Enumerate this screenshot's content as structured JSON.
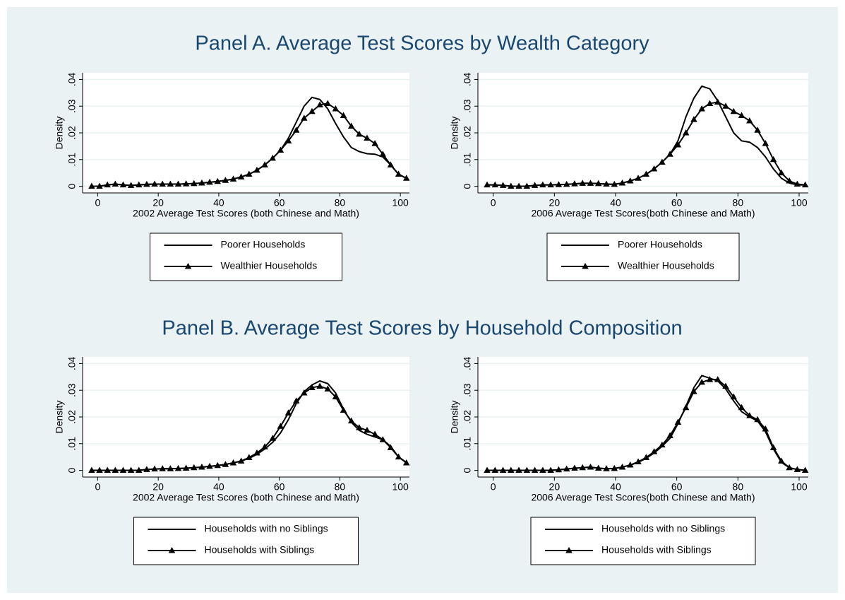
{
  "panels": [
    {
      "title": "Panel A. Average Test Scores by Wealth Category"
    },
    {
      "title": "Panel B. Average Test Scores by Household Composition"
    }
  ],
  "chart_data": [
    {
      "type": "line",
      "xlabel": "2002 Average Test Scores (both Chinese and Math)",
      "ylabel": "Density",
      "x": [
        -2,
        0.6,
        3.2,
        5.8,
        8.4,
        11,
        13.6,
        16.2,
        18.8,
        21.4,
        24,
        26.6,
        29.2,
        31.8,
        34.4,
        37,
        39.6,
        42.2,
        44.8,
        47.4,
        50,
        52.6,
        55.2,
        57.8,
        60.4,
        63,
        65.6,
        68.2,
        70.8,
        73.4,
        76,
        78.6,
        81.2,
        83.8,
        86.4,
        89,
        91.6,
        94.2,
        96.8,
        99.4,
        102
      ],
      "series": [
        {
          "name": "Poorer Households",
          "color": "#000000",
          "marker": "none",
          "values": [
            0,
            0,
            0.0005,
            0.0008,
            0.0005,
            0.0003,
            0.0005,
            0.0007,
            0.0008,
            0.0008,
            0.0008,
            0.0008,
            0.0009,
            0.001,
            0.0012,
            0.0015,
            0.0018,
            0.0022,
            0.0027,
            0.0035,
            0.0045,
            0.006,
            0.008,
            0.0105,
            0.0135,
            0.018,
            0.024,
            0.03,
            0.0333,
            0.0325,
            0.029,
            0.0235,
            0.0185,
            0.0145,
            0.013,
            0.0122,
            0.012,
            0.011,
            0.008,
            0.0045,
            0.003
          ]
        },
        {
          "name": "Wealthier Households",
          "color": "#000000",
          "marker": "triangle",
          "values": [
            0,
            0,
            0.0005,
            0.0008,
            0.0005,
            0.0003,
            0.0005,
            0.0007,
            0.0008,
            0.0008,
            0.0008,
            0.0008,
            0.0009,
            0.001,
            0.0012,
            0.0015,
            0.0018,
            0.0022,
            0.0027,
            0.0035,
            0.0045,
            0.006,
            0.008,
            0.0105,
            0.0135,
            0.017,
            0.021,
            0.0255,
            0.028,
            0.0305,
            0.031,
            0.029,
            0.0265,
            0.0225,
            0.0195,
            0.018,
            0.016,
            0.012,
            0.008,
            0.0045,
            0.003
          ]
        }
      ],
      "xlim": [
        -5,
        103
      ],
      "ylim": [
        -0.0025,
        0.0425
      ],
      "xticks": [
        0,
        20,
        40,
        60,
        80,
        100
      ],
      "yticks": [
        0,
        {
          "value": 0.01,
          "label": ".01"
        },
        {
          "value": 0.02,
          "label": ".02"
        },
        {
          "value": 0.03,
          "label": ".03"
        },
        {
          "value": 0.04,
          "label": ".04"
        }
      ],
      "grid": true,
      "legend": "bottom"
    },
    {
      "type": "line",
      "xlabel": "2006 Average Test Scores(both Chinese and Math)",
      "ylabel": "Density",
      "x": [
        -2,
        0.6,
        3.2,
        5.8,
        8.4,
        11,
        13.6,
        16.2,
        18.8,
        21.4,
        24,
        26.6,
        29.2,
        31.8,
        34.4,
        37,
        39.6,
        42.2,
        44.8,
        47.4,
        50,
        52.6,
        55.2,
        57.8,
        60.4,
        63,
        65.6,
        68.2,
        70.8,
        73.4,
        76,
        78.6,
        81.2,
        83.8,
        86.4,
        89,
        91.6,
        94.2,
        96.8,
        99.4,
        102
      ],
      "series": [
        {
          "name": "Poorer Households",
          "color": "#000000",
          "marker": "none",
          "values": [
            0.0005,
            0.0005,
            0.0003,
            0,
            0,
            0,
            0.0003,
            0.0005,
            0.0005,
            0.0006,
            0.0007,
            0.0009,
            0.0011,
            0.0011,
            0.001,
            0.0008,
            0.0007,
            0.0012,
            0.002,
            0.003,
            0.0045,
            0.0065,
            0.009,
            0.012,
            0.017,
            0.026,
            0.033,
            0.0375,
            0.0365,
            0.032,
            0.026,
            0.02,
            0.017,
            0.0165,
            0.0145,
            0.011,
            0.0065,
            0.003,
            0.0012,
            0.0005,
            0.0005
          ]
        },
        {
          "name": "Wealthier Households",
          "color": "#000000",
          "marker": "triangle",
          "values": [
            0.0005,
            0.0005,
            0.0003,
            0,
            0,
            0,
            0.0003,
            0.0005,
            0.0005,
            0.0006,
            0.0007,
            0.0009,
            0.0011,
            0.0011,
            0.001,
            0.0008,
            0.0007,
            0.0012,
            0.002,
            0.003,
            0.0045,
            0.0065,
            0.009,
            0.012,
            0.0155,
            0.02,
            0.025,
            0.029,
            0.031,
            0.0315,
            0.03,
            0.028,
            0.0265,
            0.0245,
            0.021,
            0.016,
            0.01,
            0.005,
            0.002,
            0.0008,
            0.0005
          ]
        }
      ],
      "xlim": [
        -5,
        103
      ],
      "ylim": [
        -0.0025,
        0.0425
      ],
      "xticks": [
        0,
        20,
        40,
        60,
        80,
        100
      ],
      "yticks": [
        0,
        {
          "value": 0.01,
          "label": ".01"
        },
        {
          "value": 0.02,
          "label": ".02"
        },
        {
          "value": 0.03,
          "label": ".03"
        },
        {
          "value": 0.04,
          "label": ".04"
        }
      ],
      "grid": true,
      "legend": "bottom"
    },
    {
      "type": "line",
      "xlabel": "2002 Average Test Scores (both Chinese and Math)",
      "ylabel": "Density",
      "x": [
        -2,
        0.6,
        3.2,
        5.8,
        8.4,
        11,
        13.6,
        16.2,
        18.8,
        21.4,
        24,
        26.6,
        29.2,
        31.8,
        34.4,
        37,
        39.6,
        42.2,
        44.8,
        47.4,
        50,
        52.6,
        55.2,
        57.8,
        60.4,
        63,
        65.6,
        68.2,
        70.8,
        73.4,
        76,
        78.6,
        81.2,
        83.8,
        86.4,
        89,
        91.6,
        94.2,
        96.8,
        99.4,
        102
      ],
      "series": [
        {
          "name": "Households with no Siblings",
          "color": "#000000",
          "marker": "none",
          "values": [
            0,
            0,
            0,
            0,
            0,
            0,
            0,
            0.0003,
            0.0005,
            0.0006,
            0.0006,
            0.0007,
            0.0008,
            0.001,
            0.0012,
            0.0015,
            0.0018,
            0.0022,
            0.0028,
            0.0035,
            0.0045,
            0.006,
            0.008,
            0.0105,
            0.014,
            0.019,
            0.025,
            0.0295,
            0.032,
            0.0335,
            0.0325,
            0.029,
            0.023,
            0.018,
            0.015,
            0.0135,
            0.0125,
            0.0115,
            0.009,
            0.005,
            0.003
          ]
        },
        {
          "name": "Households with Siblings",
          "color": "#000000",
          "marker": "triangle",
          "values": [
            0,
            0,
            0,
            0,
            0,
            0,
            0,
            0.0003,
            0.0005,
            0.0006,
            0.0006,
            0.0007,
            0.0008,
            0.001,
            0.0012,
            0.0015,
            0.0018,
            0.0022,
            0.0028,
            0.0035,
            0.0048,
            0.0065,
            0.0088,
            0.012,
            0.0165,
            0.0215,
            0.026,
            0.029,
            0.031,
            0.0315,
            0.0305,
            0.0275,
            0.0225,
            0.0185,
            0.016,
            0.015,
            0.0135,
            0.0115,
            0.0085,
            0.005,
            0.0028
          ]
        }
      ],
      "xlim": [
        -5,
        103
      ],
      "ylim": [
        -0.0025,
        0.0425
      ],
      "xticks": [
        0,
        20,
        40,
        60,
        80,
        100
      ],
      "yticks": [
        0,
        {
          "value": 0.01,
          "label": ".01"
        },
        {
          "value": 0.02,
          "label": ".02"
        },
        {
          "value": 0.03,
          "label": ".03"
        },
        {
          "value": 0.04,
          "label": ".04"
        }
      ],
      "grid": true,
      "legend": "bottom"
    },
    {
      "type": "line",
      "xlabel": "2006 Average Test Scores(both Chinese and Math)",
      "ylabel": "Density",
      "x": [
        -2,
        0.6,
        3.2,
        5.8,
        8.4,
        11,
        13.6,
        16.2,
        18.8,
        21.4,
        24,
        26.6,
        29.2,
        31.8,
        34.4,
        37,
        39.6,
        42.2,
        44.8,
        47.4,
        50,
        52.6,
        55.2,
        57.8,
        60.4,
        63,
        65.6,
        68.2,
        70.8,
        73.4,
        76,
        78.6,
        81.2,
        83.8,
        86.4,
        89,
        91.6,
        94.2,
        96.8,
        99.4,
        102
      ],
      "series": [
        {
          "name": "Households with no Siblings",
          "color": "#000000",
          "marker": "none",
          "values": [
            0,
            0,
            0,
            0,
            0,
            0,
            0,
            0,
            0,
            0.0002,
            0.0005,
            0.0008,
            0.001,
            0.0012,
            0.0008,
            0.0006,
            0.0007,
            0.0012,
            0.002,
            0.003,
            0.0045,
            0.0065,
            0.009,
            0.012,
            0.0175,
            0.024,
            0.031,
            0.0355,
            0.0345,
            0.0335,
            0.0305,
            0.026,
            0.022,
            0.02,
            0.0185,
            0.0145,
            0.008,
            0.003,
            0.001,
            0.0003,
            0
          ]
        },
        {
          "name": "Households with Siblings",
          "color": "#000000",
          "marker": "triangle",
          "values": [
            0,
            0,
            0,
            0,
            0,
            0,
            0,
            0,
            0,
            0.0002,
            0.0005,
            0.0008,
            0.001,
            0.0012,
            0.0008,
            0.0006,
            0.0007,
            0.0012,
            0.002,
            0.0032,
            0.0048,
            0.007,
            0.0095,
            0.013,
            0.018,
            0.0235,
            0.0295,
            0.033,
            0.034,
            0.034,
            0.0315,
            0.0275,
            0.0235,
            0.0205,
            0.019,
            0.0155,
            0.0085,
            0.0035,
            0.001,
            0.0003,
            0
          ]
        }
      ],
      "xlim": [
        -5,
        103
      ],
      "ylim": [
        -0.0025,
        0.0425
      ],
      "xticks": [
        0,
        20,
        40,
        60,
        80,
        100
      ],
      "yticks": [
        0,
        {
          "value": 0.01,
          "label": ".01"
        },
        {
          "value": 0.02,
          "label": ".02"
        },
        {
          "value": 0.03,
          "label": ".03"
        },
        {
          "value": 0.04,
          "label": ".04"
        }
      ],
      "grid": true,
      "legend": "bottom"
    }
  ]
}
